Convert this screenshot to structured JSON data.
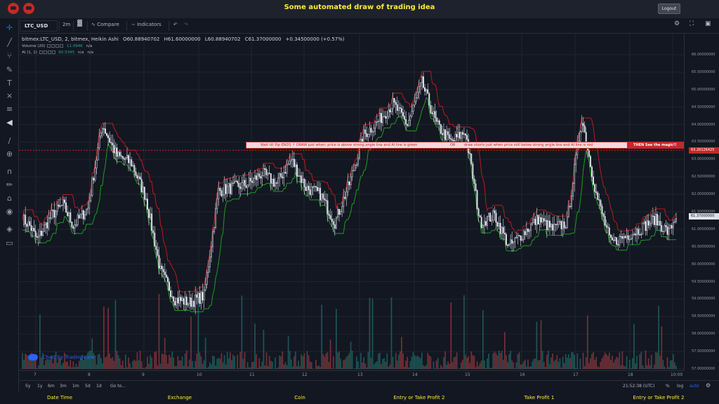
{
  "app": {
    "title": "Some automated draw of trading idea",
    "logout_label": "Logout",
    "accent_color": "#ffeb3b"
  },
  "toolbar": {
    "symbol": "LTC_USD",
    "interval": "2m",
    "compare_label": "Compare",
    "indicators_label": "Indicators"
  },
  "left_toolbar": {
    "icons": [
      "crosshair-icon",
      "trendline-icon",
      "fork-icon",
      "brush-icon",
      "text-icon",
      "pattern-icon",
      "measure-icon",
      "arrow-left-icon",
      "ruler-icon",
      "zoom-in-icon",
      "magnet-icon",
      "lock-draw-icon",
      "lock-icon",
      "eye-icon",
      "layers-icon",
      "trash-icon"
    ]
  },
  "legend": {
    "title": "bitmex:LTC_USD, 2, bitmex, Heikin Ashi",
    "open": "O60.88940702",
    "high": "H61.60000000",
    "low": "L60.88940702",
    "close": "C61.37000000",
    "change": "+0.34500000 (+0.57%)",
    "volume_label": "Volume (20)",
    "volume_value": "11.094K",
    "volume_na": "n/a",
    "ai_label": "AI (1, 1)",
    "ai_value": "60.5345",
    "ai_na1": "n/a",
    "ai_na2": "n/a"
  },
  "annotation": {
    "part1": "Wait till flip ENDS ↑  DRAW just when:  price is above strong angle line and AI line is green",
    "part2": "OR",
    "part3": "draw shorts just when price still below strong angle line and AI line is red",
    "callout": "THEN See the magic!!",
    "callout_price": "63.26126425"
  },
  "price_axis": {
    "labels": [
      "66.00000000",
      "65.50000000",
      "65.00000000",
      "64.50000000",
      "64.00000000",
      "63.50000000",
      "63.00000000",
      "62.50000000",
      "62.00000000",
      "61.50000000",
      "61.00000000",
      "60.50000000",
      "60.00000000",
      "59.50000000",
      "59.00000000",
      "58.50000000",
      "58.00000000",
      "57.50000000",
      "57.00000000"
    ],
    "current_price": "61.37000000"
  },
  "time_axis": {
    "labels": [
      "7",
      "8",
      "9",
      "10",
      "11",
      "12",
      "13",
      "14",
      "15",
      "16",
      "17",
      "18",
      "10:00"
    ]
  },
  "bottom_toolbar": {
    "ranges": [
      "5y",
      "1y",
      "6m",
      "3m",
      "1m",
      "5d",
      "1d"
    ],
    "goto_label": "Go to...",
    "clock": "21:52:38 (UTC)",
    "percent_label": "%",
    "log_label": "log",
    "auto_label": "auto"
  },
  "watermark": "Chart by TradingView",
  "footer": {
    "items": [
      "Date Time",
      "Exchange",
      "Coin",
      "Entry or Take Profit 2",
      "Take Profit 1",
      "Entry or Take Profit 2"
    ]
  },
  "chart_data": {
    "type": "candlestick",
    "ylim": [
      57.0,
      66.2
    ],
    "x_labels": [
      "7",
      "8",
      "9",
      "10",
      "11",
      "12",
      "13",
      "14",
      "15",
      "16",
      "17",
      "18",
      "10:00"
    ],
    "anchors": [
      [
        0,
        61.3
      ],
      [
        5,
        61.1
      ],
      [
        10,
        60.7
      ],
      [
        20,
        61.4
      ],
      [
        28,
        61.7
      ],
      [
        35,
        61.1
      ],
      [
        45,
        61.6
      ],
      [
        55,
        64.0
      ],
      [
        65,
        63.1
      ],
      [
        75,
        62.9
      ],
      [
        85,
        61.9
      ],
      [
        95,
        59.8
      ],
      [
        105,
        59.0
      ],
      [
        115,
        58.9
      ],
      [
        125,
        59.1
      ],
      [
        135,
        62.1
      ],
      [
        145,
        62.2
      ],
      [
        155,
        62.3
      ],
      [
        165,
        62.6
      ],
      [
        175,
        62.3
      ],
      [
        185,
        63.0
      ],
      [
        195,
        62.2
      ],
      [
        205,
        62.0
      ],
      [
        215,
        61.2
      ],
      [
        225,
        62.3
      ],
      [
        235,
        63.7
      ],
      [
        245,
        64.1
      ],
      [
        255,
        64.6
      ],
      [
        265,
        64.0
      ],
      [
        275,
        65.2
      ],
      [
        285,
        64.0
      ],
      [
        295,
        63.5
      ],
      [
        305,
        63.8
      ],
      [
        315,
        61.2
      ],
      [
        325,
        61.4
      ],
      [
        335,
        60.5
      ],
      [
        345,
        60.9
      ],
      [
        355,
        61.3
      ],
      [
        365,
        61.0
      ],
      [
        375,
        61.2
      ],
      [
        385,
        64.2
      ],
      [
        395,
        62.0
      ],
      [
        405,
        60.6
      ],
      [
        415,
        60.8
      ],
      [
        425,
        61.0
      ],
      [
        435,
        61.3
      ],
      [
        445,
        60.9
      ],
      [
        450,
        61.4
      ]
    ],
    "volume_scale": [
      0,
      90
    ],
    "horizontal_line": 63.26126425,
    "current_price": 61.37
  }
}
